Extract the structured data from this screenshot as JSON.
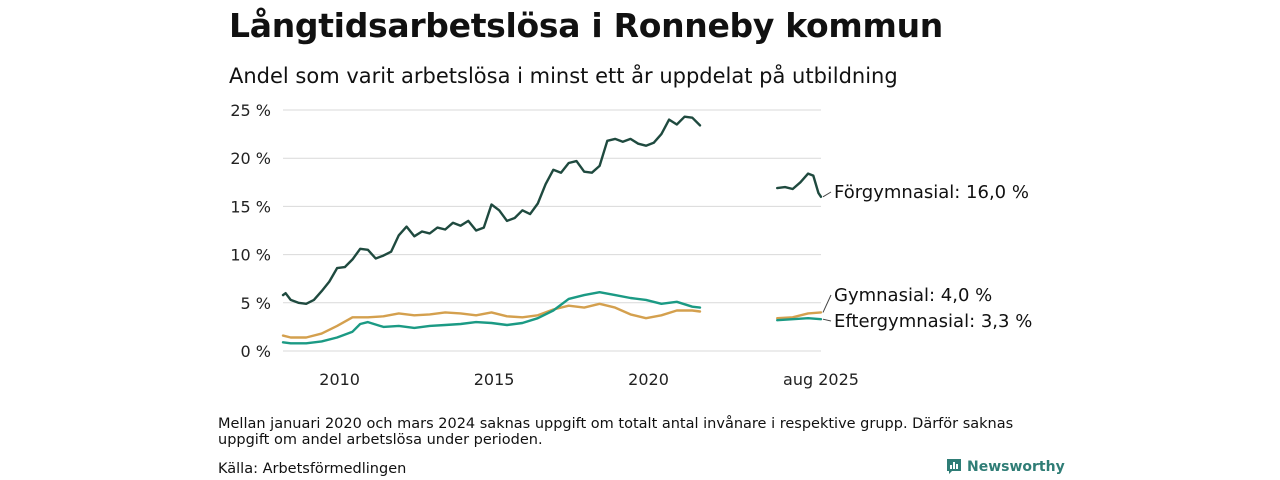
{
  "header": {
    "title": "Långtidsarbetslösa i Ronneby kommun",
    "subtitle": "Andel som varit arbetslösa i minst ett år uppdelat på utbildning"
  },
  "footer": {
    "note": "Mellan januari 2020 och mars 2024 saknas uppgift om totalt antal invånare i respektive grupp. Därför saknas uppgift om andel arbetslösa under perioden.",
    "source": "Källa: Arbetsförmedlingen",
    "brand": "Newsworthy"
  },
  "colors": {
    "forgymnasial": "#1f4a3f",
    "gymnasial": "#d4a04e",
    "eftergymnasial": "#1b9a84",
    "grid": "#d9d9d9",
    "brand": "#2f7d76"
  },
  "chart_data": {
    "type": "line",
    "ylim": [
      0,
      25
    ],
    "y_ticks": [
      "0 %",
      "5 %",
      "10 %",
      "15 %",
      "20 %",
      "25 %"
    ],
    "x_ticks": [
      {
        "date": "2010",
        "label": "2010"
      },
      {
        "date": "2015",
        "label": "2015"
      },
      {
        "date": "2020",
        "label": "2020"
      },
      {
        "date": "2025-08",
        "label": "aug 2025"
      }
    ],
    "x_range": [
      "2008-03",
      "2025-08"
    ],
    "series": [
      {
        "name": "Förgymnasial",
        "end_label": "Förgymnasial: 16,0 %",
        "color_key": "forgymnasial",
        "segments": [
          [
            [
              "2008-03",
              5.8
            ],
            [
              "2008-04",
              6.0
            ],
            [
              "2008-06",
              5.3
            ],
            [
              "2008-09",
              5.0
            ],
            [
              "2008-12",
              4.9
            ],
            [
              "2009-03",
              5.3
            ],
            [
              "2009-06",
              6.2
            ],
            [
              "2009-09",
              7.2
            ],
            [
              "2009-12",
              8.6
            ],
            [
              "2010-03",
              8.7
            ],
            [
              "2010-06",
              9.5
            ],
            [
              "2010-09",
              10.6
            ],
            [
              "2010-12",
              10.5
            ],
            [
              "2011-03",
              9.6
            ],
            [
              "2011-06",
              9.9
            ],
            [
              "2011-09",
              10.3
            ],
            [
              "2011-12",
              12.0
            ],
            [
              "2012-03",
              12.9
            ],
            [
              "2012-06",
              11.9
            ],
            [
              "2012-09",
              12.4
            ],
            [
              "2012-12",
              12.2
            ],
            [
              "2013-03",
              12.8
            ],
            [
              "2013-06",
              12.6
            ],
            [
              "2013-09",
              13.3
            ],
            [
              "2013-12",
              13.0
            ],
            [
              "2014-03",
              13.5
            ],
            [
              "2014-06",
              12.5
            ],
            [
              "2014-09",
              12.8
            ],
            [
              "2014-12",
              15.2
            ],
            [
              "2015-03",
              14.6
            ],
            [
              "2015-06",
              13.5
            ],
            [
              "2015-09",
              13.8
            ],
            [
              "2015-12",
              14.6
            ],
            [
              "2016-03",
              14.2
            ],
            [
              "2016-06",
              15.3
            ],
            [
              "2016-09",
              17.3
            ],
            [
              "2016-12",
              18.8
            ],
            [
              "2017-03",
              18.5
            ],
            [
              "2017-06",
              19.5
            ],
            [
              "2017-09",
              19.7
            ],
            [
              "2017-12",
              18.6
            ],
            [
              "2018-03",
              18.5
            ],
            [
              "2018-06",
              19.2
            ],
            [
              "2018-09",
              21.8
            ],
            [
              "2018-12",
              22.0
            ],
            [
              "2019-03",
              21.7
            ],
            [
              "2019-06",
              22.0
            ],
            [
              "2019-09",
              21.5
            ],
            [
              "2019-12",
              21.3
            ],
            [
              "2020-03",
              21.6
            ],
            [
              "2020-06",
              22.5
            ],
            [
              "2020-09",
              24.0
            ],
            [
              "2020-12",
              23.5
            ],
            [
              "2021-03",
              24.3
            ],
            [
              "2021-06",
              24.2
            ],
            [
              "2021-09",
              23.4
            ]
          ],
          [
            [
              "2024-03",
              16.9
            ],
            [
              "2024-06",
              17.0
            ],
            [
              "2024-09",
              16.8
            ],
            [
              "2024-12",
              17.5
            ],
            [
              "2025-03",
              18.4
            ],
            [
              "2025-05",
              18.2
            ],
            [
              "2025-07",
              16.4
            ],
            [
              "2025-08",
              16.0
            ]
          ]
        ]
      },
      {
        "name": "Gymnasial",
        "end_label": "Gymnasial:  4,0 %",
        "color_key": "gymnasial",
        "segments": [
          [
            [
              "2008-03",
              1.6
            ],
            [
              "2008-06",
              1.4
            ],
            [
              "2008-12",
              1.4
            ],
            [
              "2009-06",
              1.8
            ],
            [
              "2009-12",
              2.6
            ],
            [
              "2010-06",
              3.5
            ],
            [
              "2010-12",
              3.5
            ],
            [
              "2011-06",
              3.6
            ],
            [
              "2011-12",
              3.9
            ],
            [
              "2012-06",
              3.7
            ],
            [
              "2012-12",
              3.8
            ],
            [
              "2013-06",
              4.0
            ],
            [
              "2013-12",
              3.9
            ],
            [
              "2014-06",
              3.7
            ],
            [
              "2014-12",
              4.0
            ],
            [
              "2015-06",
              3.6
            ],
            [
              "2015-12",
              3.5
            ],
            [
              "2016-06",
              3.7
            ],
            [
              "2016-12",
              4.3
            ],
            [
              "2017-06",
              4.7
            ],
            [
              "2017-12",
              4.5
            ],
            [
              "2018-06",
              4.9
            ],
            [
              "2018-12",
              4.5
            ],
            [
              "2019-06",
              3.8
            ],
            [
              "2019-12",
              3.4
            ],
            [
              "2020-06",
              3.7
            ],
            [
              "2020-12",
              4.2
            ],
            [
              "2021-06",
              4.2
            ],
            [
              "2021-09",
              4.1
            ]
          ],
          [
            [
              "2024-03",
              3.4
            ],
            [
              "2024-09",
              3.5
            ],
            [
              "2025-03",
              3.9
            ],
            [
              "2025-08",
              4.0
            ]
          ]
        ]
      },
      {
        "name": "Eftergymnasial",
        "end_label": "Eftergymnasial:  3,3 %",
        "color_key": "eftergymnasial",
        "segments": [
          [
            [
              "2008-03",
              0.9
            ],
            [
              "2008-06",
              0.8
            ],
            [
              "2008-12",
              0.8
            ],
            [
              "2009-06",
              1.0
            ],
            [
              "2009-12",
              1.4
            ],
            [
              "2010-06",
              2.0
            ],
            [
              "2010-09",
              2.8
            ],
            [
              "2010-12",
              3.0
            ],
            [
              "2011-06",
              2.5
            ],
            [
              "2011-12",
              2.6
            ],
            [
              "2012-06",
              2.4
            ],
            [
              "2012-12",
              2.6
            ],
            [
              "2013-06",
              2.7
            ],
            [
              "2013-12",
              2.8
            ],
            [
              "2014-06",
              3.0
            ],
            [
              "2014-12",
              2.9
            ],
            [
              "2015-06",
              2.7
            ],
            [
              "2015-12",
              2.9
            ],
            [
              "2016-06",
              3.4
            ],
            [
              "2016-12",
              4.2
            ],
            [
              "2017-06",
              5.4
            ],
            [
              "2017-12",
              5.8
            ],
            [
              "2018-06",
              6.1
            ],
            [
              "2018-12",
              5.8
            ],
            [
              "2019-06",
              5.5
            ],
            [
              "2019-12",
              5.3
            ],
            [
              "2020-06",
              4.9
            ],
            [
              "2020-12",
              5.1
            ],
            [
              "2021-06",
              4.6
            ],
            [
              "2021-09",
              4.5
            ]
          ],
          [
            [
              "2024-03",
              3.2
            ],
            [
              "2024-09",
              3.3
            ],
            [
              "2025-03",
              3.4
            ],
            [
              "2025-08",
              3.3
            ]
          ]
        ]
      }
    ]
  }
}
